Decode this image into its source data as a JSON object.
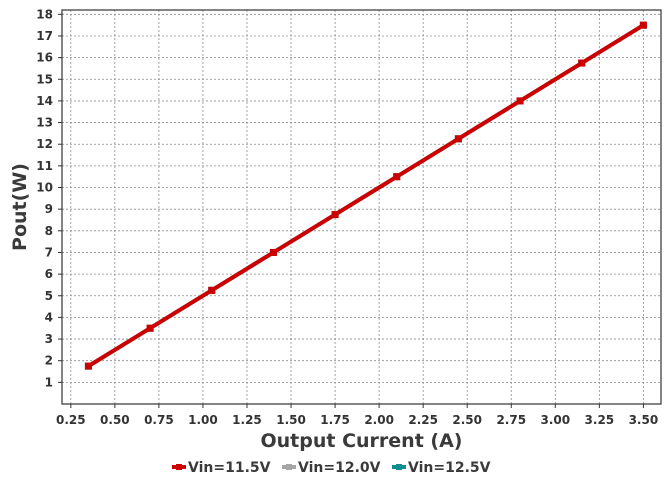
{
  "chart_data": {
    "type": "line",
    "xlabel": "Output Current (A)",
    "ylabel": "Pout(W)",
    "xlim": [
      0.2,
      3.6
    ],
    "ylim": [
      0,
      18.2
    ],
    "xticks": [
      "0.25",
      "0.50",
      "0.75",
      "1.00",
      "1.25",
      "1.50",
      "1.75",
      "2.00",
      "2.25",
      "2.50",
      "2.75",
      "3.00",
      "3.25",
      "3.50"
    ],
    "yticks": [
      "1",
      "2",
      "3",
      "4",
      "5",
      "6",
      "7",
      "8",
      "9",
      "10",
      "11",
      "12",
      "13",
      "14",
      "15",
      "16",
      "17",
      "18"
    ],
    "grid": true,
    "legend_position": "bottom",
    "series": [
      {
        "name": "Vin=11.5V",
        "color": "#cc0000",
        "x": [
          0.35,
          0.7,
          1.05,
          1.4,
          1.75,
          2.1,
          2.45,
          2.8,
          3.15,
          3.5
        ],
        "y": [
          1.75,
          3.5,
          5.25,
          7.0,
          8.75,
          10.5,
          12.25,
          14.0,
          15.75,
          17.5
        ]
      },
      {
        "name": "Vin=12.0V",
        "color": "#a6a6a6",
        "x": [
          0.35,
          0.7,
          1.05,
          1.4,
          1.75,
          2.1,
          2.45,
          2.8,
          3.15,
          3.5
        ],
        "y": [
          1.75,
          3.5,
          5.25,
          7.0,
          8.75,
          10.5,
          12.25,
          14.0,
          15.75,
          17.5
        ]
      },
      {
        "name": "Vin=12.5V",
        "color": "#138d90",
        "x": [
          0.35,
          0.7,
          1.05,
          1.4,
          1.75,
          2.1,
          2.45,
          2.8,
          3.15,
          3.5
        ],
        "y": [
          1.75,
          3.5,
          5.25,
          7.0,
          8.75,
          10.5,
          12.25,
          14.0,
          15.75,
          17.5
        ]
      }
    ]
  }
}
